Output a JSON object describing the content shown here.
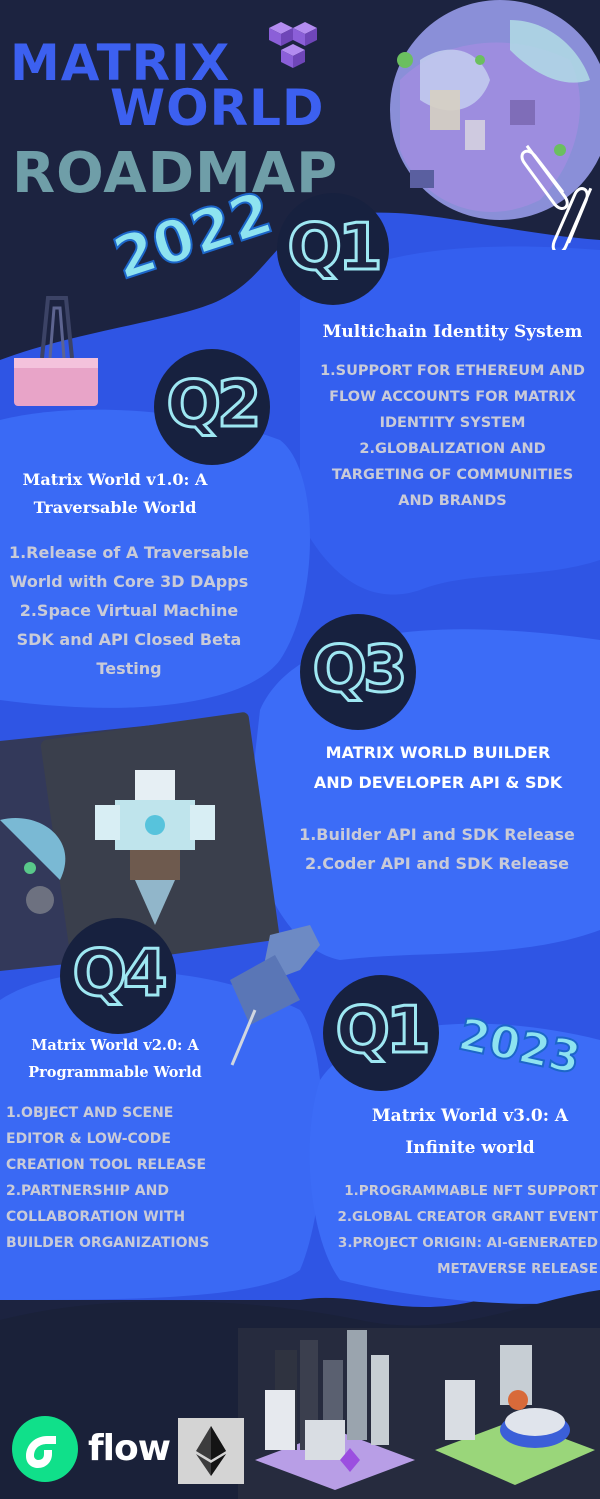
{
  "header": {
    "title_line1": "MATRIX",
    "title_line2": "WORLD",
    "title_line3": "ROADMAP",
    "logo_icon": "cube-cluster-icon"
  },
  "years": {
    "year_2022": "2022",
    "year_2023": "2023"
  },
  "milestones": [
    {
      "quarter": "Q1",
      "heading_lines": [
        "Multichain Identity System"
      ],
      "items": [
        "1.SUPPORT FOR ETHEREUM AND",
        "FLOW ACCOUNTS FOR MATRIX",
        "IDENTITY SYSTEM",
        "2.GLOBALIZATION AND",
        "TARGETING OF COMMUNITIES",
        "AND BRANDS"
      ]
    },
    {
      "quarter": "Q2",
      "heading_lines": [
        "Matrix World v1.0: A",
        "Traversable World"
      ],
      "items": [
        "1.Release of A Traversable",
        "World with Core 3D DApps",
        "2.Space Virtual Machine",
        "SDK and API Closed Beta",
        "Testing"
      ]
    },
    {
      "quarter": "Q3",
      "heading_lines": [
        "MATRIX WORLD BUILDER",
        "AND DEVELOPER API & SDK"
      ],
      "items": [
        "1.Builder API and SDK Release",
        "2.Coder API and SDK Release"
      ]
    },
    {
      "quarter": "Q4",
      "heading_lines": [
        "Matrix World v2.0: A",
        "Programmable World"
      ],
      "items": [
        "1.OBJECT AND SCENE",
        "EDITOR & LOW-CODE",
        "CREATION TOOL RELEASE",
        "2.PARTNERSHIP AND",
        "COLLABORATION WITH",
        "BUILDER ORGANIZATIONS"
      ]
    },
    {
      "quarter": "Q1",
      "heading_lines": [
        "Matrix World v3.0: A",
        "Infinite world"
      ],
      "items": [
        "1.PROGRAMMABLE NFT SUPPORT",
        "2.GLOBAL CREATOR GRANT EVENT",
        "3.PROJECT ORIGIN: AI-GENERATED",
        "METAVERSE RELEASE"
      ]
    }
  ],
  "footer": {
    "flow_label": "flow",
    "flow_icon": "flow-logo-icon",
    "ethereum_icon": "ethereum-logo-icon"
  },
  "colors": {
    "background": "#1c2340",
    "blob_blue": "#2f55e4",
    "blob_light": "#3a6af5",
    "title_blue": "#3c60f0",
    "title_teal": "#6f9ea8",
    "accent_cyan": "#9ee7f2"
  }
}
